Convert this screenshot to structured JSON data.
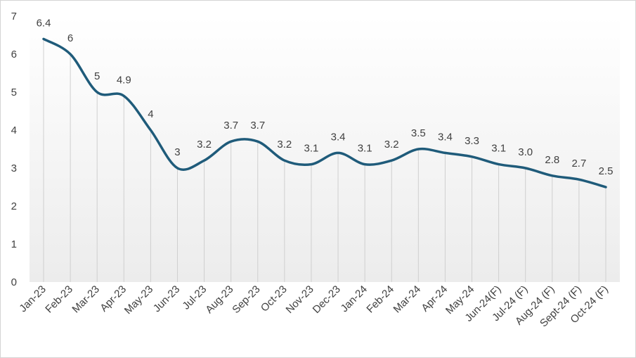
{
  "chart_data": {
    "type": "line",
    "title": "",
    "xlabel": "",
    "ylabel": "",
    "ylim": [
      0,
      7
    ],
    "yticks": [
      0,
      1,
      2,
      3,
      4,
      5,
      6,
      7
    ],
    "grid": "vertical drop lines at each category",
    "smooth": true,
    "line_color": "#1f5b7a",
    "categories": [
      "Jan-23",
      "Feb-23",
      "Mar-23",
      "Apr-23",
      "May-23",
      "Jun-23",
      "Jul-23",
      "Aug-23",
      "Sep-23",
      "Oct-23",
      "Nov-23",
      "Dec-23",
      "Jan-24",
      "Feb-24",
      "Mar-24",
      "Apr-24",
      "May-24",
      "Jun-24(F)",
      "Jul-24 (F)",
      "Aug-24 (F)",
      "Sept-24 (F)",
      "Oct-24 (F)"
    ],
    "values": [
      6.4,
      6,
      5,
      4.9,
      4,
      3,
      3.2,
      3.7,
      3.7,
      3.2,
      3.1,
      3.4,
      3.1,
      3.2,
      3.5,
      3.4,
      3.3,
      3.1,
      3.0,
      2.8,
      2.7,
      2.5
    ],
    "value_labels": [
      "6.4",
      "6",
      "5",
      "4.9",
      "4",
      "3",
      "3.2",
      "3.7",
      "3.7",
      "3.2",
      "3.1",
      "3.4",
      "3.1",
      "3.2",
      "3.5",
      "3.4",
      "3.3",
      "3.1",
      "3.0",
      "2.8",
      "2.7",
      "2.5"
    ]
  }
}
